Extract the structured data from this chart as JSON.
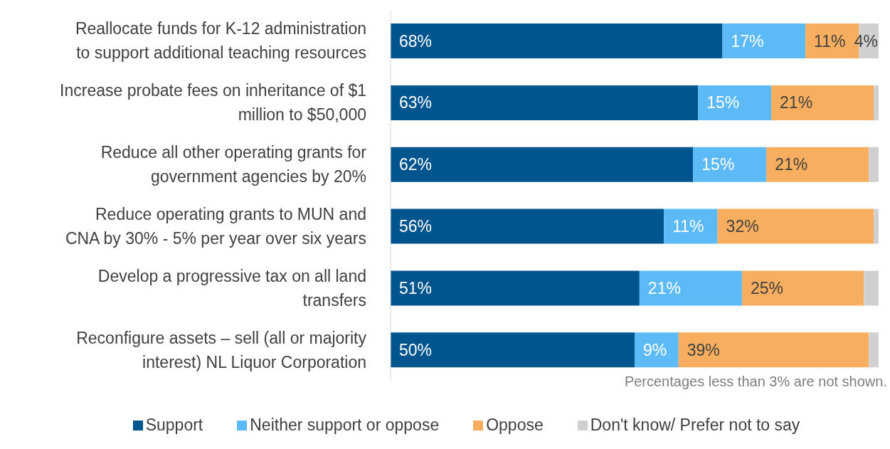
{
  "chart_data": {
    "type": "bar",
    "orientation": "horizontal",
    "stacked": true,
    "categories": [
      "Reallocate funds for K-12 administration\nto support additional teaching resources",
      "Increase probate fees on inheritance of $1\nmillion to $50,000",
      "Reduce all other operating grants for\ngovernment agencies by 20%",
      "Reduce operating grants to MUN and\nCNA by 30% - 5% per year over six years",
      "Develop a progressive tax on all land\ntransfers",
      "Reconfigure assets – sell (all or majority\ninterest) NL Liquor Corporation"
    ],
    "series": [
      {
        "name": "Support",
        "color": "#00558f",
        "values": [
          68,
          63,
          62,
          56,
          51,
          50
        ],
        "value_labels": [
          "68%",
          "63%",
          "62%",
          "56%",
          "51%",
          "50%"
        ]
      },
      {
        "name": "Neither support or oppose",
        "color": "#5cbaf7",
        "values": [
          17,
          15,
          15,
          11,
          21,
          9
        ],
        "value_labels": [
          "17%",
          "15%",
          "15%",
          "11%",
          "21%",
          "9%"
        ]
      },
      {
        "name": "Oppose",
        "color": "#f7ae5e",
        "values": [
          11,
          21,
          21,
          32,
          25,
          39
        ],
        "value_labels": [
          "11%",
          "21%",
          "21%",
          "32%",
          "25%",
          "39%"
        ]
      },
      {
        "name": "Don't know/ Prefer not to say",
        "color": "#d0d0d0",
        "values": [
          4,
          1,
          2,
          1,
          3,
          2
        ],
        "value_labels": [
          "4%",
          null,
          null,
          null,
          null,
          null
        ]
      }
    ],
    "xlim": [
      0,
      100
    ],
    "tick_labels": "y",
    "legend": "bottom",
    "annotations": [
      "Percentages less than 3% are not shown."
    ]
  }
}
